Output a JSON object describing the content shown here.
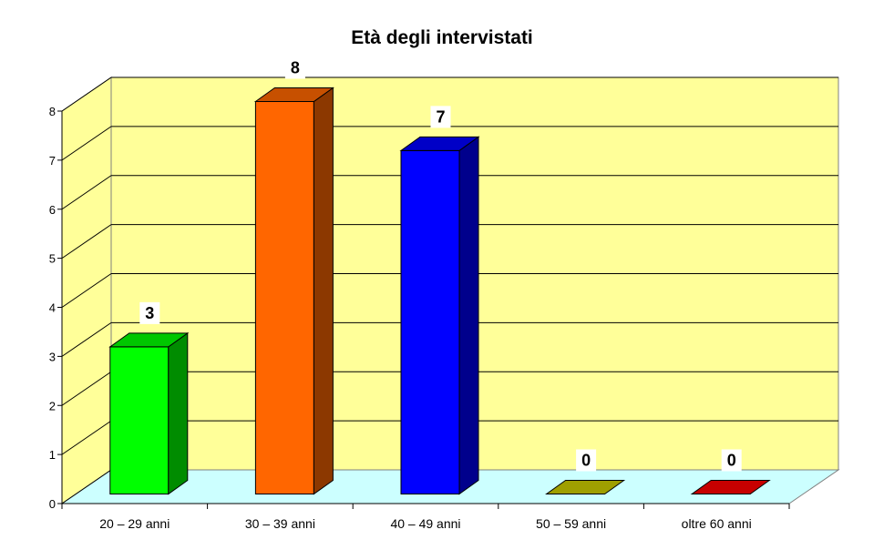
{
  "chart_data": {
    "type": "bar",
    "title": "Età degli intervistati",
    "categories": [
      "20 – 29 anni",
      "30 – 39 anni",
      "40 – 49 anni",
      "50 – 59 anni",
      "oltre 60 anni"
    ],
    "values": [
      3,
      8,
      7,
      0,
      0
    ],
    "data_labels": [
      "3",
      "8",
      "7",
      "0",
      "0"
    ],
    "y_ticks": [
      "0",
      "1",
      "2",
      "3",
      "4",
      "5",
      "6",
      "7",
      "8"
    ],
    "ylim": [
      0,
      8
    ],
    "grid": true,
    "three_d": true,
    "legend": "none",
    "colors": {
      "bars": [
        "#00ff00",
        "#ff6600",
        "#0000ff",
        "#cccc00",
        "#ff0000"
      ],
      "back_wall": "#ffff99",
      "side_wall": "#ffff99",
      "floor": "#ccffff",
      "gridline": "#000000"
    }
  }
}
